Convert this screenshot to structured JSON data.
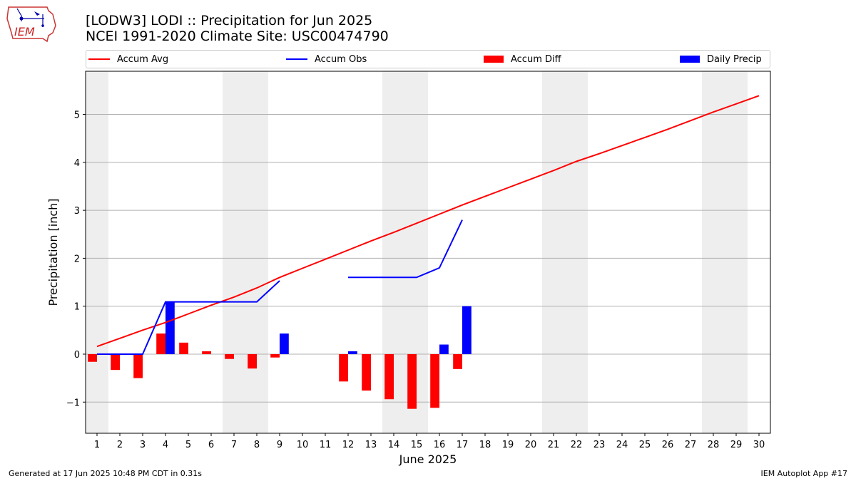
{
  "header": {
    "title": "[LODW3] LODI :: Precipitation for Jun 2025",
    "subtitle": "NCEI 1991-2020 Climate Site: USC00474790"
  },
  "logo": {
    "text": "IEM"
  },
  "footer": {
    "left": "Generated at 17 Jun 2025 10:48 PM CDT in 0.31s",
    "right": "IEM Autoplot App #17"
  },
  "colors": {
    "accum_avg": "#ff0000",
    "accum_obs": "#0000ff",
    "accum_diff": "#ff0000",
    "daily_precip": "#0000ff",
    "weekend_shade": "#eeeeee",
    "grid": "#b0b0b0"
  },
  "chart_data": {
    "type": "bar",
    "xlabel": "June 2025",
    "ylabel": "Precipitation [inch]",
    "xlim": [
      0.5,
      30.5
    ],
    "ylim": [
      -1.65,
      5.9
    ],
    "yticks": [
      -1,
      0,
      1,
      2,
      3,
      4,
      5
    ],
    "ytick_labels": [
      "−1",
      "0",
      "1",
      "2",
      "3",
      "4",
      "5"
    ],
    "x_ticks": [
      1,
      2,
      3,
      4,
      5,
      6,
      7,
      8,
      9,
      10,
      11,
      12,
      13,
      14,
      15,
      16,
      17,
      18,
      19,
      20,
      21,
      22,
      23,
      24,
      25,
      26,
      27,
      28,
      29,
      30
    ],
    "legend_position": "top",
    "grid": "horizontal",
    "weekend_spans": [
      [
        0.5,
        1.5
      ],
      [
        6.5,
        8.5
      ],
      [
        13.5,
        15.5
      ],
      [
        20.5,
        22.5
      ],
      [
        27.5,
        29.5
      ]
    ],
    "series": [
      {
        "name": "Accum Avg",
        "kind": "line",
        "x": [
          1,
          2,
          3,
          4,
          5,
          6,
          7,
          8,
          9,
          10,
          11,
          12,
          13,
          14,
          15,
          16,
          17,
          18,
          19,
          20,
          21,
          22,
          23,
          24,
          25,
          26,
          27,
          28,
          29,
          30
        ],
        "values": [
          0.16,
          0.33,
          0.5,
          0.66,
          0.84,
          1.02,
          1.19,
          1.38,
          1.6,
          1.79,
          1.98,
          2.17,
          2.36,
          2.54,
          2.73,
          2.92,
          3.11,
          3.29,
          3.47,
          3.65,
          3.83,
          4.02,
          4.18,
          4.35,
          4.52,
          4.69,
          4.87,
          5.05,
          5.22,
          5.39
        ]
      },
      {
        "name": "Accum Obs",
        "kind": "line",
        "x": [
          1,
          2,
          3,
          4,
          5,
          6,
          7,
          8,
          9,
          10,
          11,
          12,
          13,
          14,
          15,
          16,
          17
        ],
        "values": [
          0.0,
          0.0,
          0.0,
          1.09,
          1.09,
          1.09,
          1.09,
          1.09,
          1.53,
          null,
          null,
          1.6,
          1.6,
          1.6,
          1.6,
          1.8,
          2.8
        ]
      },
      {
        "name": "Accum Diff",
        "kind": "bar",
        "x": [
          1,
          2,
          3,
          4,
          5,
          6,
          7,
          8,
          9,
          12,
          13,
          14,
          15,
          16,
          17
        ],
        "values": [
          -0.16,
          -0.33,
          -0.5,
          0.43,
          0.24,
          0.06,
          -0.1,
          -0.3,
          -0.07,
          -0.57,
          -0.76,
          -0.94,
          -1.14,
          -1.12,
          -0.31
        ]
      },
      {
        "name": "Daily Precip",
        "kind": "bar",
        "x": [
          4,
          9,
          12,
          16,
          17
        ],
        "values": [
          1.09,
          0.43,
          0.06,
          0.2,
          1.0
        ]
      }
    ]
  }
}
